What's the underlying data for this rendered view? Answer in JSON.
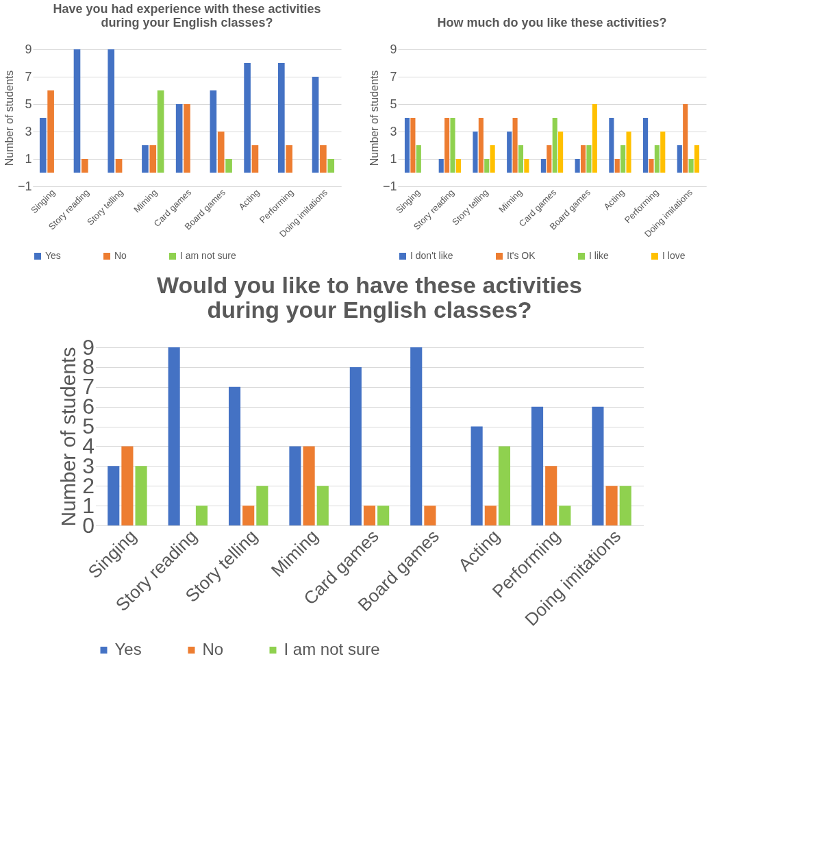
{
  "chart_data": [
    {
      "type": "bar",
      "title": "Have you had experience with these activities\nduring your English classes?",
      "ylabel": "Number of students",
      "categories": [
        "Singing",
        "Story reading",
        "Story telling",
        "Miming",
        "Card games",
        "Board games",
        "Acting",
        "Performing",
        "Doing imitations"
      ],
      "series": [
        {
          "name": "Yes",
          "color": "#4472c4",
          "values": [
            4,
            9,
            9,
            2,
            5,
            6,
            8,
            8,
            7
          ]
        },
        {
          "name": "No",
          "color": "#ed7d31",
          "values": [
            6,
            1,
            1,
            2,
            5,
            3,
            2,
            2,
            2
          ]
        },
        {
          "name": "I am not sure",
          "color": "#8fd14f",
          "values": [
            0,
            0,
            0,
            6,
            0,
            1,
            0,
            0,
            1
          ]
        }
      ],
      "ylim": [
        -1,
        9
      ],
      "yticks": [
        -1,
        1,
        3,
        5,
        7,
        9
      ],
      "grid": "y",
      "legend": "bottom"
    },
    {
      "type": "bar",
      "title": "How much do you like these activities?",
      "ylabel": "Number of students",
      "categories": [
        "Singing",
        "Story reading",
        "Story telling",
        "Miming",
        "Card games",
        "Board games",
        "Acting",
        "Performing",
        "Doing imitations"
      ],
      "series": [
        {
          "name": "I don't like",
          "color": "#4472c4",
          "values": [
            4,
            1,
            3,
            3,
            1,
            1,
            4,
            4,
            2
          ]
        },
        {
          "name": "It's OK",
          "color": "#ed7d31",
          "values": [
            4,
            4,
            4,
            4,
            2,
            2,
            1,
            1,
            5
          ]
        },
        {
          "name": "I like",
          "color": "#8fd14f",
          "values": [
            2,
            4,
            1,
            2,
            4,
            2,
            2,
            2,
            1
          ]
        },
        {
          "name": "I love",
          "color": "#ffc000",
          "values": [
            0,
            1,
            2,
            1,
            3,
            5,
            3,
            3,
            2
          ]
        }
      ],
      "ylim": [
        -1,
        9
      ],
      "yticks": [
        -1,
        1,
        3,
        5,
        7,
        9
      ],
      "grid": "y",
      "legend": "bottom"
    },
    {
      "type": "bar",
      "title": "Would you like to have these activities\nduring your English classes?",
      "ylabel": "Number of students",
      "categories": [
        "Singing",
        "Story reading",
        "Story telling",
        "Miming",
        "Card games",
        "Board games",
        "Acting",
        "Performing",
        "Doing imitations"
      ],
      "series": [
        {
          "name": "Yes",
          "color": "#4472c4",
          "values": [
            3,
            9,
            7,
            4,
            8,
            9,
            5,
            6,
            6
          ]
        },
        {
          "name": "No",
          "color": "#ed7d31",
          "values": [
            4,
            0,
            1,
            4,
            1,
            1,
            1,
            3,
            2
          ]
        },
        {
          "name": "I am not sure",
          "color": "#8fd14f",
          "values": [
            3,
            1,
            2,
            2,
            1,
            0,
            4,
            1,
            2
          ]
        }
      ],
      "ylim": [
        0,
        9
      ],
      "yticks": [
        0,
        1,
        2,
        3,
        4,
        5,
        6,
        7,
        8,
        9
      ],
      "grid": "y",
      "legend": "bottom"
    }
  ]
}
